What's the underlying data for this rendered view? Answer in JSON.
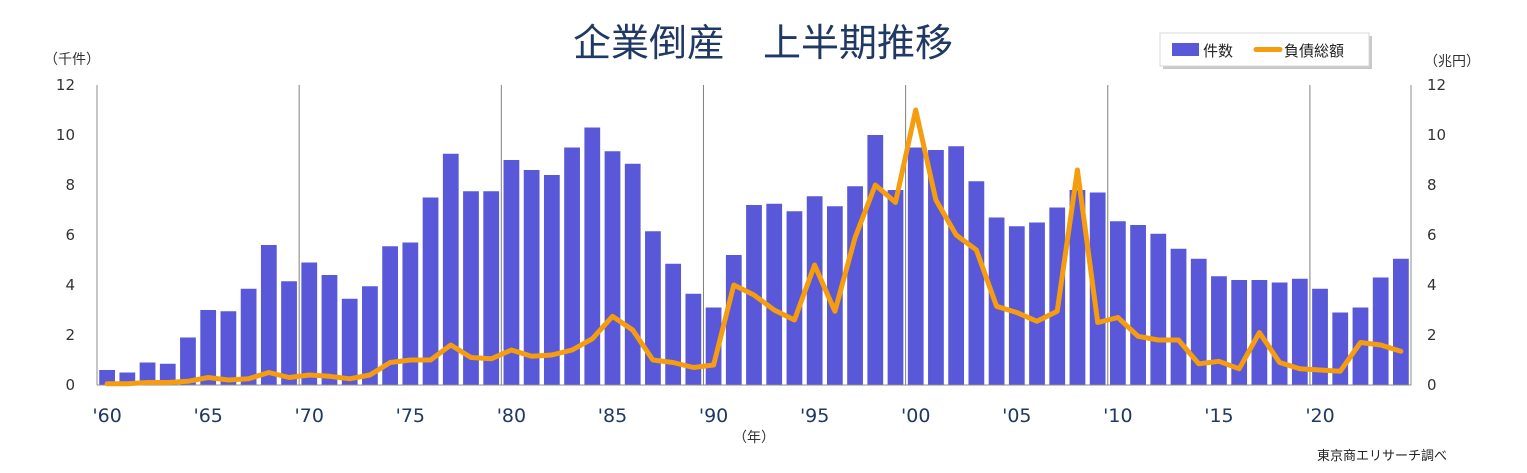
{
  "chart_data": {
    "type": "bar",
    "title": "企業倒産　上半期推移",
    "left_unit": "（千件）",
    "right_unit": "（兆円）",
    "x_unit": "（年）",
    "source": "東京商エリサーチ調べ",
    "x_tick_labels": [
      "'60",
      "'65",
      "'70",
      "'75",
      "'80",
      "'85",
      "'90",
      "'95",
      "'00",
      "'05",
      "'10",
      "'15",
      "'20"
    ],
    "y_left": {
      "min": 0,
      "max": 12,
      "ticks": [
        "0",
        "2",
        "4",
        "6",
        "8",
        "10",
        "12"
      ]
    },
    "y_right": {
      "min": 0,
      "max": 12,
      "ticks": [
        "0",
        "2",
        "4",
        "6",
        "8",
        "10",
        "12"
      ]
    },
    "grid": "vertical at decade boundaries",
    "legend_position": "top-right",
    "colors": {
      "bars": "#5858d8",
      "line": "#f59c0f",
      "title": "#1f3864"
    },
    "x": [
      1960,
      1961,
      1962,
      1963,
      1964,
      1965,
      1966,
      1967,
      1968,
      1969,
      1970,
      1971,
      1972,
      1973,
      1974,
      1975,
      1976,
      1977,
      1978,
      1979,
      1980,
      1981,
      1982,
      1983,
      1984,
      1985,
      1986,
      1987,
      1988,
      1989,
      1990,
      1991,
      1992,
      1993,
      1994,
      1995,
      1996,
      1997,
      1998,
      1999,
      2000,
      2001,
      2002,
      2003,
      2004,
      2005,
      2006,
      2007,
      2008,
      2009,
      2010,
      2011,
      2012,
      2013,
      2014,
      2015,
      2016,
      2017,
      2018,
      2019,
      2020,
      2021,
      2022,
      2023,
      2024
    ],
    "series": [
      {
        "name": "件数",
        "type": "bar",
        "axis": "left",
        "values": [
          0.6,
          0.5,
          0.9,
          0.85,
          1.9,
          3.0,
          2.95,
          3.85,
          5.6,
          4.15,
          4.9,
          4.4,
          3.45,
          3.95,
          5.55,
          5.7,
          7.5,
          9.25,
          7.75,
          7.75,
          9.0,
          8.6,
          8.4,
          9.5,
          10.3,
          9.35,
          8.85,
          6.15,
          4.85,
          3.65,
          3.1,
          5.2,
          7.2,
          7.25,
          6.95,
          7.55,
          7.15,
          7.95,
          10.0,
          7.8,
          9.5,
          9.4,
          9.55,
          8.15,
          6.7,
          6.35,
          6.5,
          7.1,
          7.8,
          7.7,
          6.55,
          6.4,
          6.05,
          5.45,
          5.05,
          4.35,
          4.2,
          4.2,
          4.1,
          4.25,
          3.85,
          2.9,
          3.1,
          4.3,
          5.05
        ]
      },
      {
        "name": "負債総額",
        "type": "line",
        "axis": "right",
        "values": [
          0.05,
          0.05,
          0.1,
          0.1,
          0.15,
          0.3,
          0.2,
          0.25,
          0.5,
          0.3,
          0.4,
          0.35,
          0.25,
          0.4,
          0.9,
          1.0,
          1.0,
          1.6,
          1.1,
          1.05,
          1.4,
          1.15,
          1.2,
          1.4,
          1.85,
          2.75,
          2.2,
          1.0,
          0.9,
          0.7,
          0.8,
          4.0,
          3.6,
          3.0,
          2.6,
          4.8,
          2.95,
          5.9,
          8.0,
          7.3,
          11.0,
          7.4,
          6.0,
          5.4,
          3.15,
          2.9,
          2.55,
          2.95,
          8.6,
          2.5,
          2.7,
          1.95,
          1.8,
          1.8,
          0.85,
          0.95,
          0.65,
          2.1,
          0.9,
          0.65,
          0.6,
          0.55,
          1.7,
          1.6,
          1.35
        ]
      }
    ]
  }
}
